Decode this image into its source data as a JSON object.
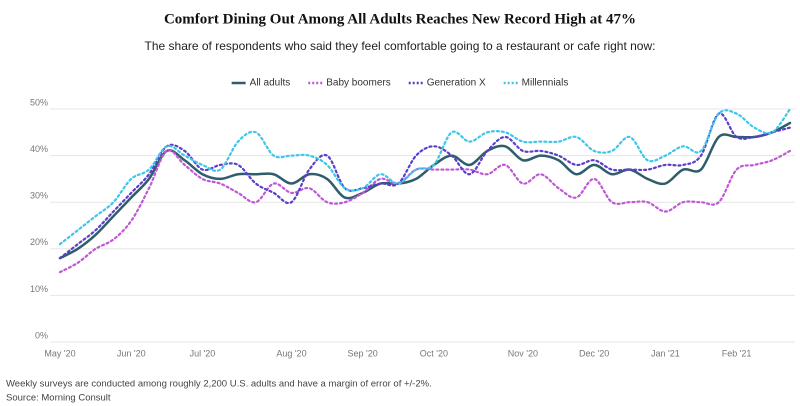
{
  "chart_data": {
    "type": "line",
    "title": "Comfort Dining Out Among All Adults Reaches New Record High at 47%",
    "subtitle": "The share of respondents who said they feel comfortable going to a restaurant or cafe right now:",
    "note": "Weekly surveys are conducted among roughly 2,200 U.S. adults and have a margin of error of +/-2%.",
    "source": "Source: Morning Consult",
    "categories": [
      "May '20",
      null,
      null,
      null,
      "Jun '20",
      null,
      null,
      null,
      "Jul '20",
      null,
      null,
      null,
      null,
      "Aug '20",
      null,
      null,
      null,
      "Sep '20",
      null,
      null,
      null,
      "Oct '20",
      null,
      null,
      null,
      null,
      "Nov '20",
      null,
      null,
      null,
      "Dec '20",
      null,
      null,
      null,
      "Jan '21",
      null,
      null,
      null,
      "Feb '21",
      null,
      null,
      null
    ],
    "series": [
      {
        "name": "All adults",
        "color": "#2e5e6b",
        "dashed": false,
        "values": [
          18,
          20,
          23,
          27,
          31,
          35,
          41,
          39,
          36,
          35,
          36,
          36,
          36,
          34,
          36,
          35,
          31,
          32,
          34,
          34,
          35,
          38,
          40,
          38,
          41,
          42,
          39,
          40,
          39,
          36,
          38,
          36,
          37,
          35,
          34,
          37,
          37,
          44,
          44,
          44,
          45,
          47
        ]
      },
      {
        "name": "Baby boomers",
        "color": "#c058d6",
        "dashed": true,
        "values": [
          15,
          17,
          20,
          22,
          26,
          33,
          41,
          38,
          35,
          34,
          32,
          30,
          34,
          32,
          33,
          30,
          30,
          32,
          35,
          34,
          37,
          37,
          37,
          37,
          36,
          38,
          34,
          36,
          33,
          31,
          35,
          30,
          30,
          30,
          28,
          30,
          30,
          30,
          37,
          38,
          39,
          41
        ]
      },
      {
        "name": "Generation X",
        "color": "#5b3fc9",
        "dashed": true,
        "values": [
          18,
          21,
          24,
          28,
          32,
          36,
          42,
          41,
          37,
          38,
          38,
          34,
          32,
          30,
          37,
          40,
          33,
          33,
          34,
          34,
          40,
          42,
          40,
          36,
          41,
          44,
          41,
          41,
          40,
          38,
          39,
          37,
          37,
          37,
          38,
          38,
          40,
          49,
          44,
          44,
          45,
          46
        ]
      },
      {
        "name": "Millennials",
        "color": "#3ec6ea",
        "dashed": true,
        "values": [
          21,
          24,
          27,
          30,
          35,
          37,
          42,
          40,
          38,
          37,
          43,
          45,
          40,
          40,
          40,
          38,
          33,
          33,
          36,
          34,
          37,
          38,
          45,
          43,
          45,
          45,
          43,
          43,
          43,
          44,
          41,
          41,
          44,
          39,
          40,
          42,
          41,
          49,
          49,
          46,
          45,
          50
        ]
      }
    ],
    "ylim": [
      0,
      50
    ],
    "yticks": [
      {
        "value": 0,
        "label": "0%"
      },
      {
        "value": 10,
        "label": "10%"
      },
      {
        "value": 20,
        "label": "20%"
      },
      {
        "value": 30,
        "label": "30%"
      },
      {
        "value": 40,
        "label": "40%"
      },
      {
        "value": 50,
        "label": "50%"
      }
    ],
    "grid": true,
    "legend": "top"
  }
}
